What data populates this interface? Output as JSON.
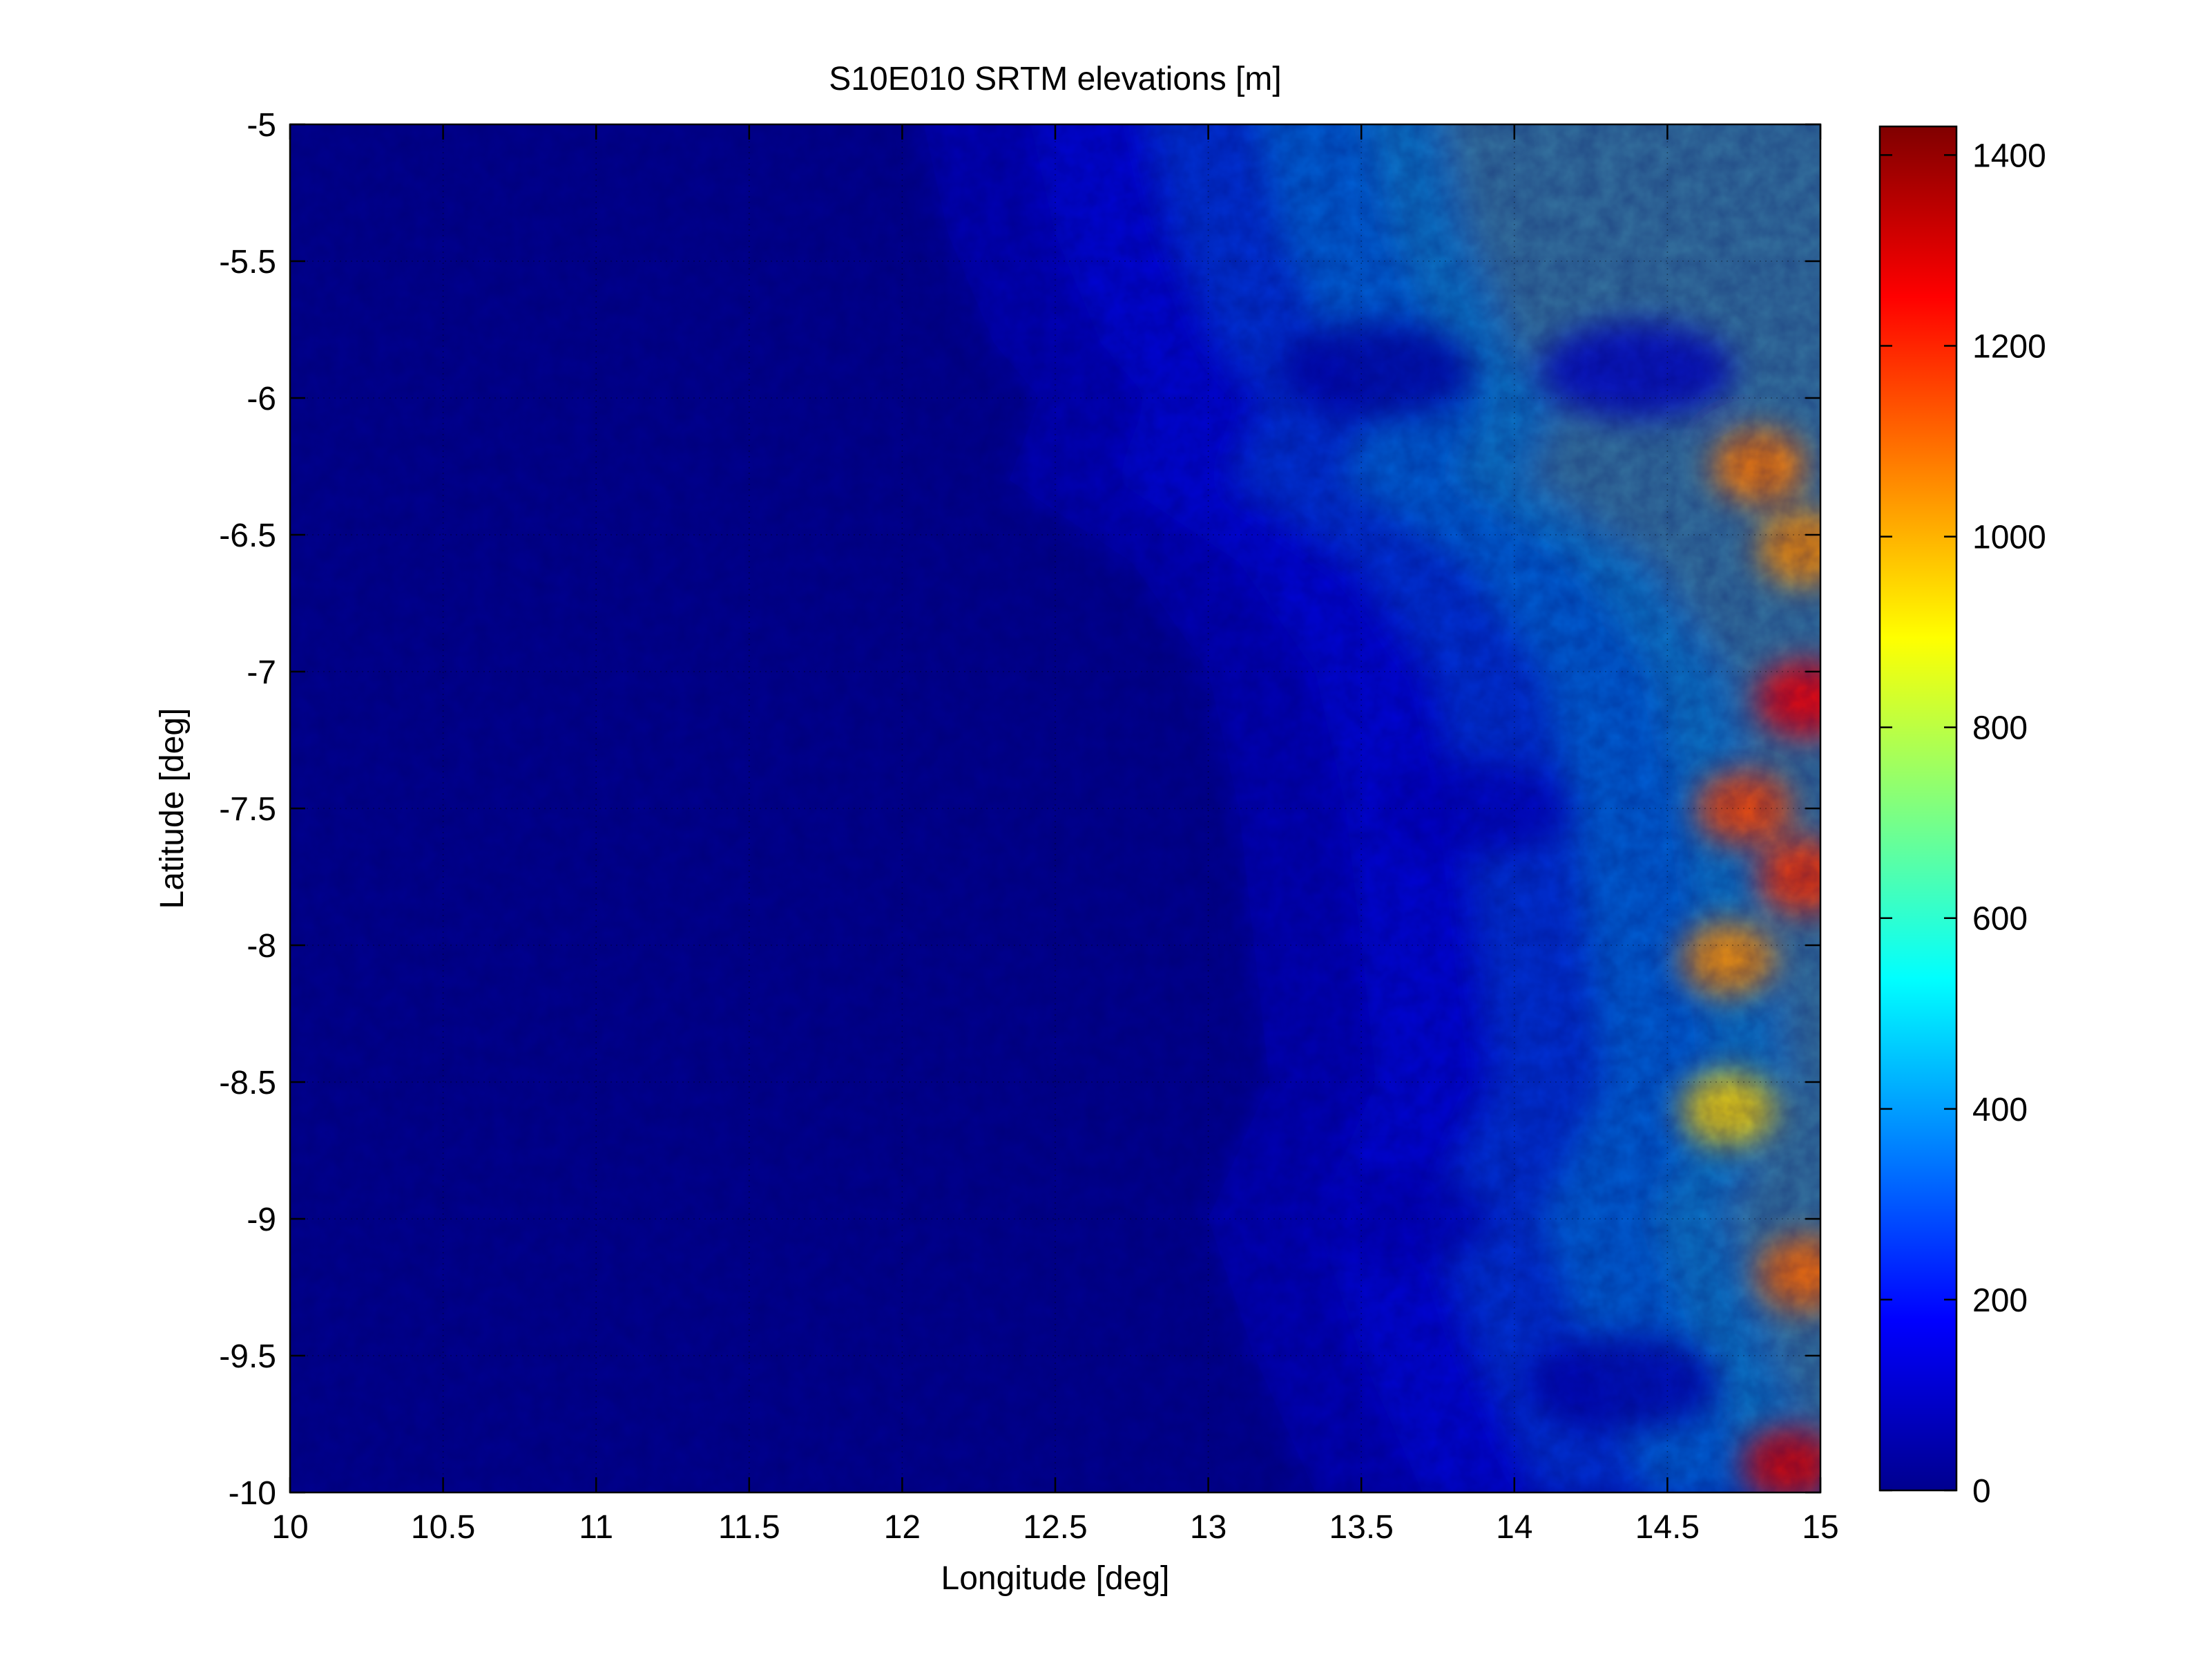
{
  "chart_data": {
    "type": "heatmap",
    "title": "S10E010 SRTM elevations [m]",
    "xlabel": "Longitude [deg]",
    "ylabel": "Latitude [deg]",
    "xlim": [
      10,
      15
    ],
    "ylim": [
      -10,
      -5
    ],
    "xticks": [
      10,
      10.5,
      11,
      11.5,
      12,
      12.5,
      13,
      13.5,
      14,
      14.5,
      15
    ],
    "yticks": [
      -5,
      -5.5,
      -6,
      -6.5,
      -7,
      -7.5,
      -8,
      -8.5,
      -9,
      -9.5,
      -10
    ],
    "grid": true,
    "colormap": "jet",
    "colorbar": {
      "clim": [
        0,
        1430
      ],
      "ticks": [
        0,
        200,
        400,
        600,
        800,
        1000,
        1200,
        1400
      ],
      "location": "right"
    },
    "coastline_lon": [
      [
        -5.0,
        12.05
      ],
      [
        -5.4,
        12.15
      ],
      [
        -5.8,
        12.3
      ],
      [
        -6.0,
        12.45
      ],
      [
        -6.3,
        12.35
      ],
      [
        -6.6,
        12.75
      ],
      [
        -7.0,
        13.0
      ],
      [
        -7.5,
        13.1
      ],
      [
        -8.0,
        13.15
      ],
      [
        -8.5,
        13.2
      ],
      [
        -9.0,
        13.0
      ],
      [
        -9.5,
        13.15
      ],
      [
        -10.0,
        13.35
      ]
    ],
    "highland_zones": [
      {
        "lat": -6.25,
        "lon": 14.8,
        "elevation": 1080
      },
      {
        "lat": -6.55,
        "lon": 14.95,
        "elevation": 1050
      },
      {
        "lat": -7.1,
        "lon": 14.95,
        "elevation": 1250
      },
      {
        "lat": -7.5,
        "lon": 14.75,
        "elevation": 1150
      },
      {
        "lat": -7.75,
        "lon": 14.95,
        "elevation": 1180
      },
      {
        "lat": -8.05,
        "lon": 14.7,
        "elevation": 1050
      },
      {
        "lat": -8.6,
        "lon": 14.7,
        "elevation": 950
      },
      {
        "lat": -9.2,
        "lon": 14.95,
        "elevation": 1100
      },
      {
        "lat": -9.9,
        "lon": 14.9,
        "elevation": 1300
      }
    ],
    "lowland_valleys": [
      {
        "lat": -5.9,
        "lon": 13.55,
        "elevation": 60
      },
      {
        "lat": -5.9,
        "lon": 14.4,
        "elevation": 100
      },
      {
        "lat": -7.5,
        "lon": 13.85,
        "elevation": 90
      },
      {
        "lat": -9.6,
        "lon": 14.35,
        "elevation": 70
      },
      {
        "lat": -9.0,
        "lon": 13.6,
        "elevation": 80
      }
    ]
  }
}
